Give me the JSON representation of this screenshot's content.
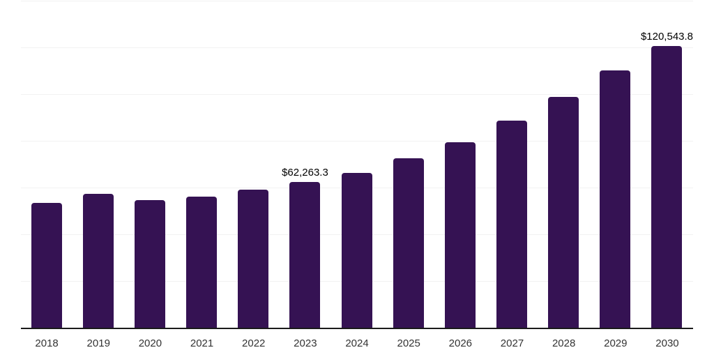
{
  "chart_data": {
    "type": "bar",
    "title": "",
    "xlabel": "",
    "ylabel": "",
    "categories": [
      "2018",
      "2019",
      "2020",
      "2021",
      "2022",
      "2023",
      "2024",
      "2025",
      "2026",
      "2027",
      "2028",
      "2029",
      "2030"
    ],
    "values": [
      53400,
      57400,
      54500,
      56000,
      59000,
      62263.3,
      66300,
      72500,
      79400,
      88700,
      98800,
      110200,
      120543.8
    ],
    "data_labels": [
      null,
      null,
      null,
      null,
      null,
      "$62,263.3",
      null,
      null,
      null,
      null,
      null,
      null,
      "$120,543.8"
    ],
    "ylim": [
      0,
      140000
    ],
    "gridline_interval": 20000,
    "grid": "on",
    "y_axis_tick_labels": "none",
    "legend": "none",
    "bar_color": "#351253",
    "gridline_color": "#f2f2f2",
    "axis_line_color": "#1a1a1a",
    "tick_label_color": "#333333",
    "value_label_color": "#000000",
    "background_color": "#ffffff"
  }
}
